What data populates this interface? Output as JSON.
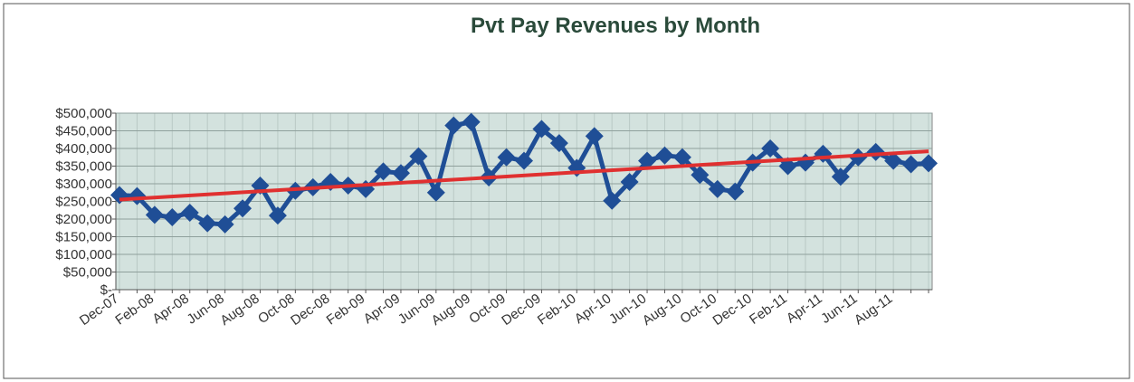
{
  "chart_data": {
    "type": "line",
    "title": "Pvt Pay Revenues by Month",
    "categories": [
      "Dec-07",
      null,
      "Feb-08",
      null,
      "Apr-08",
      null,
      "Jun-08",
      null,
      "Aug-08",
      null,
      "Oct-08",
      null,
      "Dec-08",
      null,
      "Feb-09",
      null,
      "Apr-09",
      null,
      "Jun-09",
      null,
      "Aug-09",
      null,
      "Oct-09",
      null,
      "Dec-09",
      null,
      "Feb-10",
      null,
      "Apr-10",
      null,
      "Jun-10",
      null,
      "Aug-10",
      null,
      "Oct-10",
      null,
      "Dec-10",
      null,
      "Feb-11",
      null,
      "Apr-11",
      null,
      "Jun-11",
      null,
      "Aug-11",
      null,
      null
    ],
    "series": [
      {
        "color": "#1f4e96",
        "values": [
          268000,
          265000,
          212000,
          205000,
          218000,
          188000,
          185000,
          230000,
          295000,
          210000,
          280000,
          290000,
          305000,
          295000,
          285000,
          335000,
          330000,
          378000,
          275000,
          465000,
          475000,
          318000,
          375000,
          365000,
          455000,
          415000,
          345000,
          435000,
          252000,
          305000,
          365000,
          380000,
          375000,
          325000,
          285000,
          278000,
          360000,
          400000,
          350000,
          360000,
          385000,
          320000,
          375000,
          390000,
          365000,
          355000,
          358000
        ]
      }
    ],
    "trendline": {
      "color": "#e03030",
      "start": 255000,
      "end": 392000
    },
    "ylim": [
      0,
      500000
    ],
    "yticks": [
      {
        "value": 0,
        "label": "$-"
      },
      {
        "value": 50000,
        "label": "$50,000"
      },
      {
        "value": 100000,
        "label": "$100,000"
      },
      {
        "value": 150000,
        "label": "$150,000"
      },
      {
        "value": 200000,
        "label": "$200,000"
      },
      {
        "value": 250000,
        "label": "$250,000"
      },
      {
        "value": 300000,
        "label": "$300,000"
      },
      {
        "value": 350000,
        "label": "$350,000"
      },
      {
        "value": 400000,
        "label": "$400,000"
      },
      {
        "value": 450000,
        "label": "$450,000"
      },
      {
        "value": 500000,
        "label": "$500,000"
      }
    ],
    "grid": true
  }
}
